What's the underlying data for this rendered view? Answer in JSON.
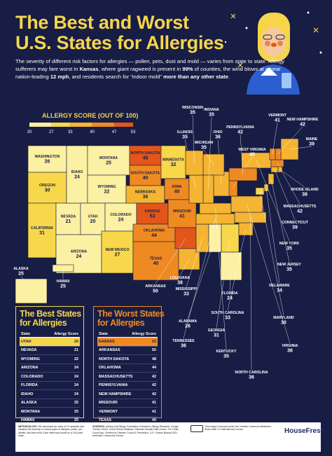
{
  "header": {
    "title_lines": [
      "The Best and Worst",
      "U.S. States for Allergies"
    ]
  },
  "intro": {
    "runs": [
      {
        "text": "The severity of different risk factors for allergies — pollen, pets, dust and mold — varies from state to state. Allergy sufferers may fare worst in ",
        "bold": false
      },
      {
        "text": "Kansas",
        "bold": true
      },
      {
        "text": ", where giant ragweed is present in ",
        "bold": false
      },
      {
        "text": "99%",
        "bold": true
      },
      {
        "text": " of counties, the wind blows at a near nation-leading ",
        "bold": false
      },
      {
        "text": "12 mph",
        "bold": true
      },
      {
        "text": ", and residents search for “indoor mold” ",
        "bold": false
      },
      {
        "text": "more than any other state",
        "bold": true
      },
      {
        "text": ".",
        "bold": false
      }
    ]
  },
  "legend": {
    "title": "ALLERGY SCORE (OUT OF 100)",
    "ticks": [
      20,
      27,
      33,
      40,
      47,
      53
    ],
    "colors": [
      "#fcf0a2",
      "#f8d84a",
      "#f5b532",
      "#ef8a22",
      "#e2561b"
    ]
  },
  "map": {
    "states": [
      {
        "name": "WASHINGTON",
        "score": 26
      },
      {
        "name": "OREGON",
        "score": 30
      },
      {
        "name": "CALIFORNIA",
        "score": 31
      },
      {
        "name": "NEVADA",
        "score": 21
      },
      {
        "name": "IDAHO",
        "score": 24
      },
      {
        "name": "MONTANA",
        "score": 25
      },
      {
        "name": "WYOMING",
        "score": 22
      },
      {
        "name": "UTAH",
        "score": 20
      },
      {
        "name": "COLORADO",
        "score": 24
      },
      {
        "name": "ARIZONA",
        "score": 24
      },
      {
        "name": "NEW MEXICO",
        "score": 27
      },
      {
        "name": "NORTH DAKOTA",
        "score": 48
      },
      {
        "name": "SOUTH DAKOTA",
        "score": 40
      },
      {
        "name": "NEBRASKA",
        "score": 36
      },
      {
        "name": "KANSAS",
        "score": 53
      },
      {
        "name": "OKLAHOMA",
        "score": 44
      },
      {
        "name": "TEXAS",
        "score": 40
      },
      {
        "name": "MINNESOTA",
        "score": 32
      },
      {
        "name": "IOWA",
        "score": 40
      },
      {
        "name": "MISSOURI",
        "score": 41
      },
      {
        "name": "ALASKA",
        "score": 25
      },
      {
        "name": "HAWAII",
        "score": 25
      },
      {
        "name": "ARKANSAS",
        "score": 50
      },
      {
        "name": "LOUISIANA",
        "score": 38
      },
      {
        "name": "MISSISSIPPI",
        "score": 33
      },
      {
        "name": "ALABAMA",
        "score": 26
      },
      {
        "name": "TENNESSEE",
        "score": 36
      },
      {
        "name": "GEORGIA",
        "score": 31
      },
      {
        "name": "FLORIDA",
        "score": 24
      },
      {
        "name": "SOUTH CAROLINA",
        "score": 33
      },
      {
        "name": "KENTUCKY",
        "score": 35
      },
      {
        "name": "NORTH CAROLINA",
        "score": 36
      },
      {
        "name": "VIRGINIA",
        "score": 36
      },
      {
        "name": "MARYLAND",
        "score": 30
      },
      {
        "name": "DELAWARE",
        "score": 34
      },
      {
        "name": "NEW JERSEY",
        "score": 35
      },
      {
        "name": "NEW YORK",
        "score": 35
      },
      {
        "name": "CONNECTICUT",
        "score": 39
      },
      {
        "name": "MASSACHUSETTS",
        "score": 42
      },
      {
        "name": "RHODE ISLAND",
        "score": 38
      },
      {
        "name": "MAINE",
        "score": 39
      },
      {
        "name": "NEW HAMPSHIRE",
        "score": 42
      },
      {
        "name": "VERMONT",
        "score": 41
      },
      {
        "name": "WEST VIRGINIA",
        "score": 40
      },
      {
        "name": "PENNSYLVANIA",
        "score": 42
      },
      {
        "name": "OHIO",
        "score": 36
      },
      {
        "name": "MICHIGAN",
        "score": 35
      },
      {
        "name": "INDIANA",
        "score": 35
      },
      {
        "name": "ILLINOIS",
        "score": 35
      },
      {
        "name": "WISCONSIN",
        "score": 35
      }
    ]
  },
  "best_table": {
    "title_lines": [
      "The Best States",
      "for Allergies"
    ],
    "headers": [
      "State",
      "Allergy Score"
    ],
    "rows": [
      [
        "UTAH",
        20
      ],
      [
        "NEVADA",
        21
      ],
      [
        "WYOMING",
        22
      ],
      [
        "ARIZONA",
        24
      ],
      [
        "COLORADO",
        24
      ],
      [
        "FLORIDA",
        24
      ],
      [
        "IDAHO",
        24
      ],
      [
        "ALASKA",
        25
      ],
      [
        "MONTANA",
        25
      ],
      [
        "HAWAII",
        25
      ]
    ]
  },
  "worst_table": {
    "title_lines": [
      "The Worst States",
      "for Allergies"
    ],
    "headers": [
      "State",
      "Allergy Score"
    ],
    "rows": [
      [
        "KANSAS",
        53
      ],
      [
        "ARKANSAS",
        50
      ],
      [
        "NORTH DAKOTA",
        48
      ],
      [
        "OKLAHOMA",
        44
      ],
      [
        "MASSACHUSETTS",
        42
      ],
      [
        "PENNSYLVANIA",
        42
      ],
      [
        "NEW HAMPSHIRE",
        42
      ],
      [
        "MISSOURI",
        41
      ],
      [
        "VERMONT",
        41
      ],
      [
        "TEXAS",
        40
      ]
    ]
  },
  "footer": {
    "methodology_label": "METHODOLOGY:",
    "methodology": "We developed an index of 10 variables that measure the severity of various types of allergies: pollen, pet dander, dust and mold. Each state was scored on a 100-point scale.",
    "sources_label": "SOURCES:",
    "sources": "Asthma and Allergy Foundation of America, Allergy Research, Google Trends, NOAA, USDA Plants Database, National Climatic Data Center, The Pollen Count App, Centers for Disease Control & Prevention, U.S. Census Bureau 2021 American Community Survey.",
    "license": "This image is licensed under the Creative Commons Attribution-Share Alike 4.0 International License",
    "logo": "HouseFresh"
  }
}
